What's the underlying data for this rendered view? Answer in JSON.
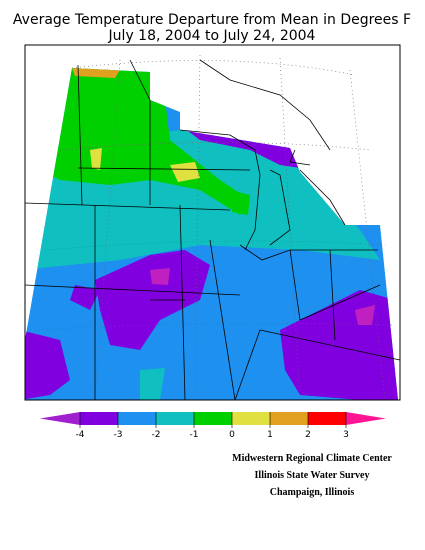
{
  "title": [
    "Average Temperature Departure from Mean in Degrees F",
    "July 18, 2004 to July 24, 2004"
  ],
  "legend": {
    "ticks": [
      -4,
      -3,
      -2,
      -1,
      0,
      1,
      2,
      3
    ],
    "colors": [
      "#a020d0",
      "#8000e0",
      "#1e90f0",
      "#10c0c0",
      "#00d000",
      "#e0e040",
      "#e0a020",
      "#ff0000",
      "#ff1493"
    ]
  },
  "credits": [
    "Midwestern Regional Climate Center",
    "Illinois State Water Survey",
    "Champaign, Illinois"
  ]
}
